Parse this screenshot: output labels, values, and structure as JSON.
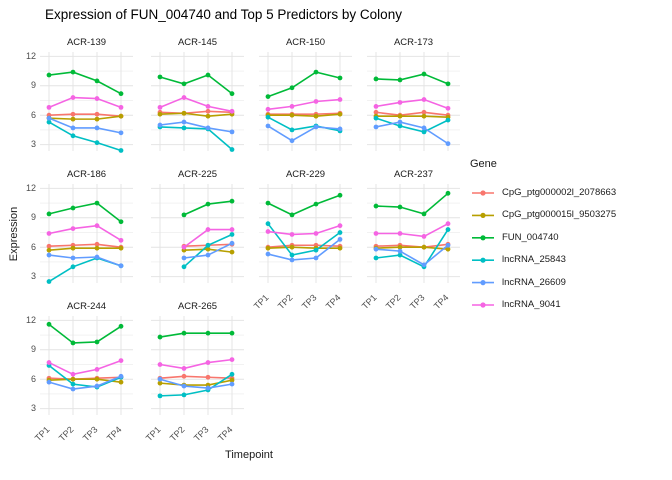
{
  "chart_data": {
    "type": "line",
    "title": "Expression of FUN_004740 and Top 5 Predictors by Colony",
    "xlabel": "Timepoint",
    "ylabel": "Expression",
    "legend_title": "Gene",
    "legend_position": "right",
    "grid": true,
    "x_ticks": [
      "TP1",
      "TP2",
      "TP3",
      "TP4"
    ],
    "y_ticks": [
      3,
      6,
      9,
      12
    ],
    "y_minor_gridlines": [
      4.5,
      7.5,
      10.5
    ],
    "ylim": [
      2.25,
      12.45
    ],
    "genes": [
      {
        "name": "CpG_ptg000002l_2078663",
        "color": "#F8766D"
      },
      {
        "name": "CpG_ptg000015l_9503275",
        "color": "#B79F00"
      },
      {
        "name": "FUN_004740",
        "color": "#00BA38"
      },
      {
        "name": "lncRNA_25843",
        "color": "#00BFC4"
      },
      {
        "name": "lncRNA_26609",
        "color": "#619CFF"
      },
      {
        "name": "lncRNA_9041",
        "color": "#F564E3"
      }
    ],
    "facets": [
      {
        "name": "ACR-139",
        "values": {
          "CpG_ptg000002l_2078663": [
            6.0,
            6.1,
            6.1,
            5.9
          ],
          "CpG_ptg000015l_9503275": [
            5.7,
            5.6,
            5.6,
            5.9
          ],
          "FUN_004740": [
            10.1,
            10.4,
            9.5,
            8.2
          ],
          "lncRNA_25843": [
            5.3,
            3.9,
            3.2,
            2.4
          ],
          "lncRNA_26609": [
            5.7,
            4.7,
            4.7,
            4.2
          ],
          "lncRNA_9041": [
            6.8,
            7.8,
            7.7,
            6.8
          ]
        }
      },
      {
        "name": "ACR-145",
        "values": {
          "CpG_ptg000002l_2078663": [
            6.3,
            6.2,
            6.4,
            6.3
          ],
          "CpG_ptg000015l_9503275": [
            6.1,
            6.2,
            5.9,
            6.1
          ],
          "FUN_004740": [
            9.9,
            9.2,
            10.1,
            8.2
          ],
          "lncRNA_25843": [
            4.8,
            4.7,
            4.6,
            2.5
          ],
          "lncRNA_26609": [
            5.0,
            5.3,
            4.7,
            4.3
          ],
          "lncRNA_9041": [
            6.8,
            7.8,
            6.9,
            6.4
          ]
        }
      },
      {
        "name": "ACR-150",
        "values": {
          "CpG_ptg000002l_2078663": [
            6.1,
            6.1,
            6.1,
            6.2
          ],
          "CpG_ptg000015l_9503275": [
            6.0,
            6.0,
            5.9,
            6.1
          ],
          "FUN_004740": [
            7.9,
            8.8,
            10.4,
            9.8
          ],
          "lncRNA_25843": [
            5.8,
            4.5,
            4.9,
            4.4
          ],
          "lncRNA_26609": [
            4.9,
            3.4,
            4.8,
            4.6
          ],
          "lncRNA_9041": [
            6.6,
            6.9,
            7.4,
            7.6
          ]
        }
      },
      {
        "name": "ACR-173",
        "values": {
          "CpG_ptg000002l_2078663": [
            6.3,
            6.0,
            6.3,
            6.0
          ],
          "CpG_ptg000015l_9503275": [
            5.9,
            5.9,
            5.9,
            5.8
          ],
          "FUN_004740": [
            9.7,
            9.6,
            10.2,
            9.2
          ],
          "lncRNA_25843": [
            5.7,
            4.9,
            4.3,
            5.5
          ],
          "lncRNA_26609": [
            4.8,
            5.3,
            4.7,
            3.1
          ],
          "lncRNA_9041": [
            6.9,
            7.3,
            7.6,
            6.7
          ]
        }
      },
      {
        "name": "ACR-186",
        "values": {
          "CpG_ptg000002l_2078663": [
            6.1,
            6.2,
            6.3,
            6.0
          ],
          "CpG_ptg000015l_9503275": [
            5.7,
            5.9,
            5.9,
            5.9
          ],
          "FUN_004740": [
            9.4,
            10.0,
            10.5,
            8.6
          ],
          "lncRNA_25843": [
            2.5,
            4.0,
            4.9,
            4.1
          ],
          "lncRNA_26609": [
            5.2,
            4.9,
            5.0,
            4.1
          ],
          "lncRNA_9041": [
            7.4,
            7.9,
            8.2,
            6.7
          ]
        }
      },
      {
        "name": "ACR-225",
        "values": {
          "CpG_ptg000002l_2078663": [
            null,
            6.1,
            6.2,
            6.3
          ],
          "CpG_ptg000015l_9503275": [
            null,
            5.7,
            5.8,
            5.5
          ],
          "FUN_004740": [
            null,
            9.3,
            10.4,
            10.7
          ],
          "lncRNA_25843": [
            null,
            4.0,
            6.2,
            7.3
          ],
          "lncRNA_26609": [
            null,
            4.9,
            5.2,
            6.4
          ],
          "lncRNA_9041": [
            null,
            6.0,
            7.8,
            7.8
          ]
        }
      },
      {
        "name": "ACR-229",
        "values": {
          "CpG_ptg000002l_2078663": [
            6.0,
            6.2,
            6.2,
            6.1
          ],
          "CpG_ptg000015l_9503275": [
            5.9,
            6.0,
            5.9,
            5.9
          ],
          "FUN_004740": [
            10.5,
            9.3,
            10.4,
            11.3
          ],
          "lncRNA_25843": [
            8.4,
            5.2,
            5.7,
            7.5
          ],
          "lncRNA_26609": [
            5.3,
            4.7,
            4.9,
            6.8
          ],
          "lncRNA_9041": [
            7.6,
            7.3,
            7.4,
            8.2
          ]
        }
      },
      {
        "name": "ACR-237",
        "values": {
          "CpG_ptg000002l_2078663": [
            6.1,
            6.2,
            6.0,
            6.3
          ],
          "CpG_ptg000015l_9503275": [
            5.9,
            6.0,
            6.0,
            5.8
          ],
          "FUN_004740": [
            10.2,
            10.1,
            9.4,
            11.5
          ],
          "lncRNA_25843": [
            4.9,
            5.2,
            4.0,
            7.8
          ],
          "lncRNA_26609": [
            5.8,
            5.6,
            4.2,
            6.2
          ],
          "lncRNA_9041": [
            7.4,
            7.4,
            7.1,
            8.4
          ]
        }
      },
      {
        "name": "ACR-244",
        "values": {
          "CpG_ptg000002l_2078663": [
            6.1,
            6.0,
            6.1,
            6.2
          ],
          "CpG_ptg000015l_9503275": [
            5.9,
            6.0,
            6.0,
            5.7
          ],
          "FUN_004740": [
            11.6,
            9.7,
            9.8,
            11.4
          ],
          "lncRNA_25843": [
            7.4,
            5.5,
            5.2,
            6.2
          ],
          "lncRNA_26609": [
            5.7,
            5.0,
            5.3,
            6.3
          ],
          "lncRNA_9041": [
            7.7,
            6.5,
            7.0,
            7.9
          ]
        }
      },
      {
        "name": "ACR-265",
        "values": {
          "CpG_ptg000002l_2078663": [
            6.1,
            6.3,
            6.2,
            6.1
          ],
          "CpG_ptg000015l_9503275": [
            5.6,
            5.4,
            5.4,
            5.9
          ],
          "FUN_004740": [
            10.3,
            10.7,
            10.7,
            10.7
          ],
          "lncRNA_25843": [
            4.3,
            4.4,
            4.9,
            6.5
          ],
          "lncRNA_26609": [
            6.0,
            5.3,
            5.1,
            5.5
          ],
          "lncRNA_9041": [
            7.5,
            7.1,
            7.7,
            8.0
          ]
        }
      }
    ]
  }
}
